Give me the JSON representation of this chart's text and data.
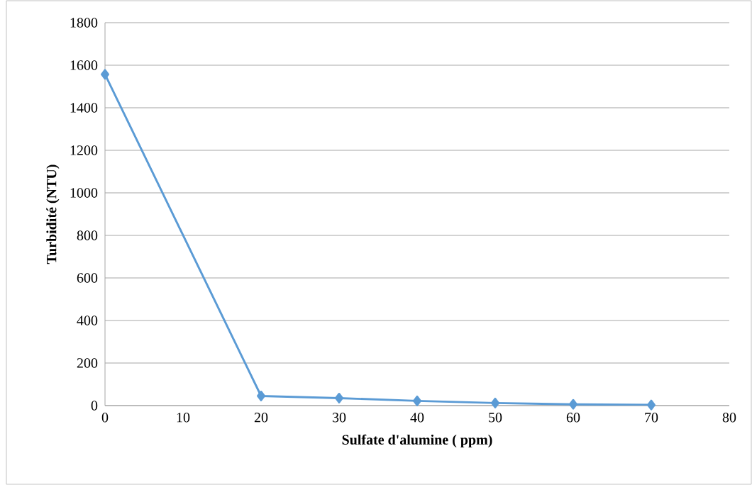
{
  "chart_data": {
    "type": "line",
    "xlabel": "Sulfate d'alumine ( ppm)",
    "ylabel": "Turbidité (NTU)",
    "x": [
      0,
      20,
      30,
      40,
      50,
      60,
      70
    ],
    "series": [
      {
        "color": "#5b9bd5",
        "values": [
          1557,
          45,
          35,
          22,
          12,
          6,
          3
        ]
      }
    ],
    "xlim": [
      0,
      80
    ],
    "xticks": [
      0,
      10,
      20,
      30,
      40,
      50,
      60,
      70,
      80
    ],
    "ylim": [
      0,
      1800
    ],
    "yticks": [
      0,
      200,
      400,
      600,
      800,
      1000,
      1200,
      1400,
      1600,
      1800
    ],
    "grid": "y",
    "marker": "diamond",
    "line_style": "solid"
  }
}
